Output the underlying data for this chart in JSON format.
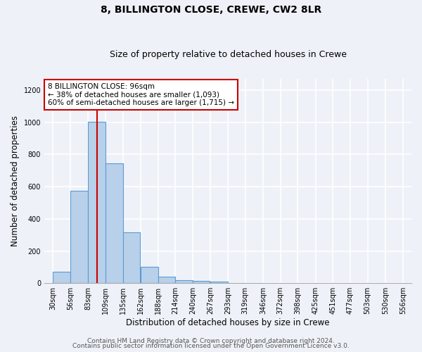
{
  "title": "8, BILLINGTON CLOSE, CREWE, CW2 8LR",
  "subtitle": "Size of property relative to detached houses in Crewe",
  "xlabel": "Distribution of detached houses by size in Crewe",
  "ylabel": "Number of detached properties",
  "bar_left_edges": [
    30,
    56,
    83,
    109,
    135,
    162,
    188,
    214,
    240,
    267,
    293,
    319
  ],
  "bar_heights": [
    70,
    575,
    1005,
    745,
    315,
    100,
    40,
    20,
    15,
    10,
    0,
    0
  ],
  "bin_width": 26,
  "bar_color": "#b8d0ea",
  "bar_edge_color": "#5b9bd5",
  "property_value": 96,
  "vline_color": "#cc0000",
  "annotation_box_color": "#cc0000",
  "annotation_text": "8 BILLINGTON CLOSE: 96sqm\n← 38% of detached houses are smaller (1,093)\n60% of semi-detached houses are larger (1,715) →",
  "xtick_labels": [
    "30sqm",
    "56sqm",
    "83sqm",
    "109sqm",
    "135sqm",
    "162sqm",
    "188sqm",
    "214sqm",
    "240sqm",
    "267sqm",
    "293sqm",
    "319sqm",
    "346sqm",
    "372sqm",
    "398sqm",
    "425sqm",
    "451sqm",
    "477sqm",
    "503sqm",
    "530sqm",
    "556sqm"
  ],
  "xtick_positions": [
    30,
    56,
    83,
    109,
    135,
    162,
    188,
    214,
    240,
    267,
    293,
    319,
    346,
    372,
    398,
    425,
    451,
    477,
    503,
    530,
    556
  ],
  "xlim_left": 17,
  "xlim_right": 569,
  "ylim": [
    0,
    1270
  ],
  "yticks": [
    0,
    200,
    400,
    600,
    800,
    1000,
    1200
  ],
  "footer_line1": "Contains HM Land Registry data © Crown copyright and database right 2024.",
  "footer_line2": "Contains public sector information licensed under the Open Government Licence v3.0.",
  "bg_color": "#eef2f8",
  "plot_bg_color": "#eef2f8",
  "grid_color": "#ffffff",
  "title_fontsize": 10,
  "subtitle_fontsize": 9,
  "axis_label_fontsize": 8.5,
  "tick_fontsize": 7,
  "footer_fontsize": 6.5,
  "ann_fontsize": 7.5
}
